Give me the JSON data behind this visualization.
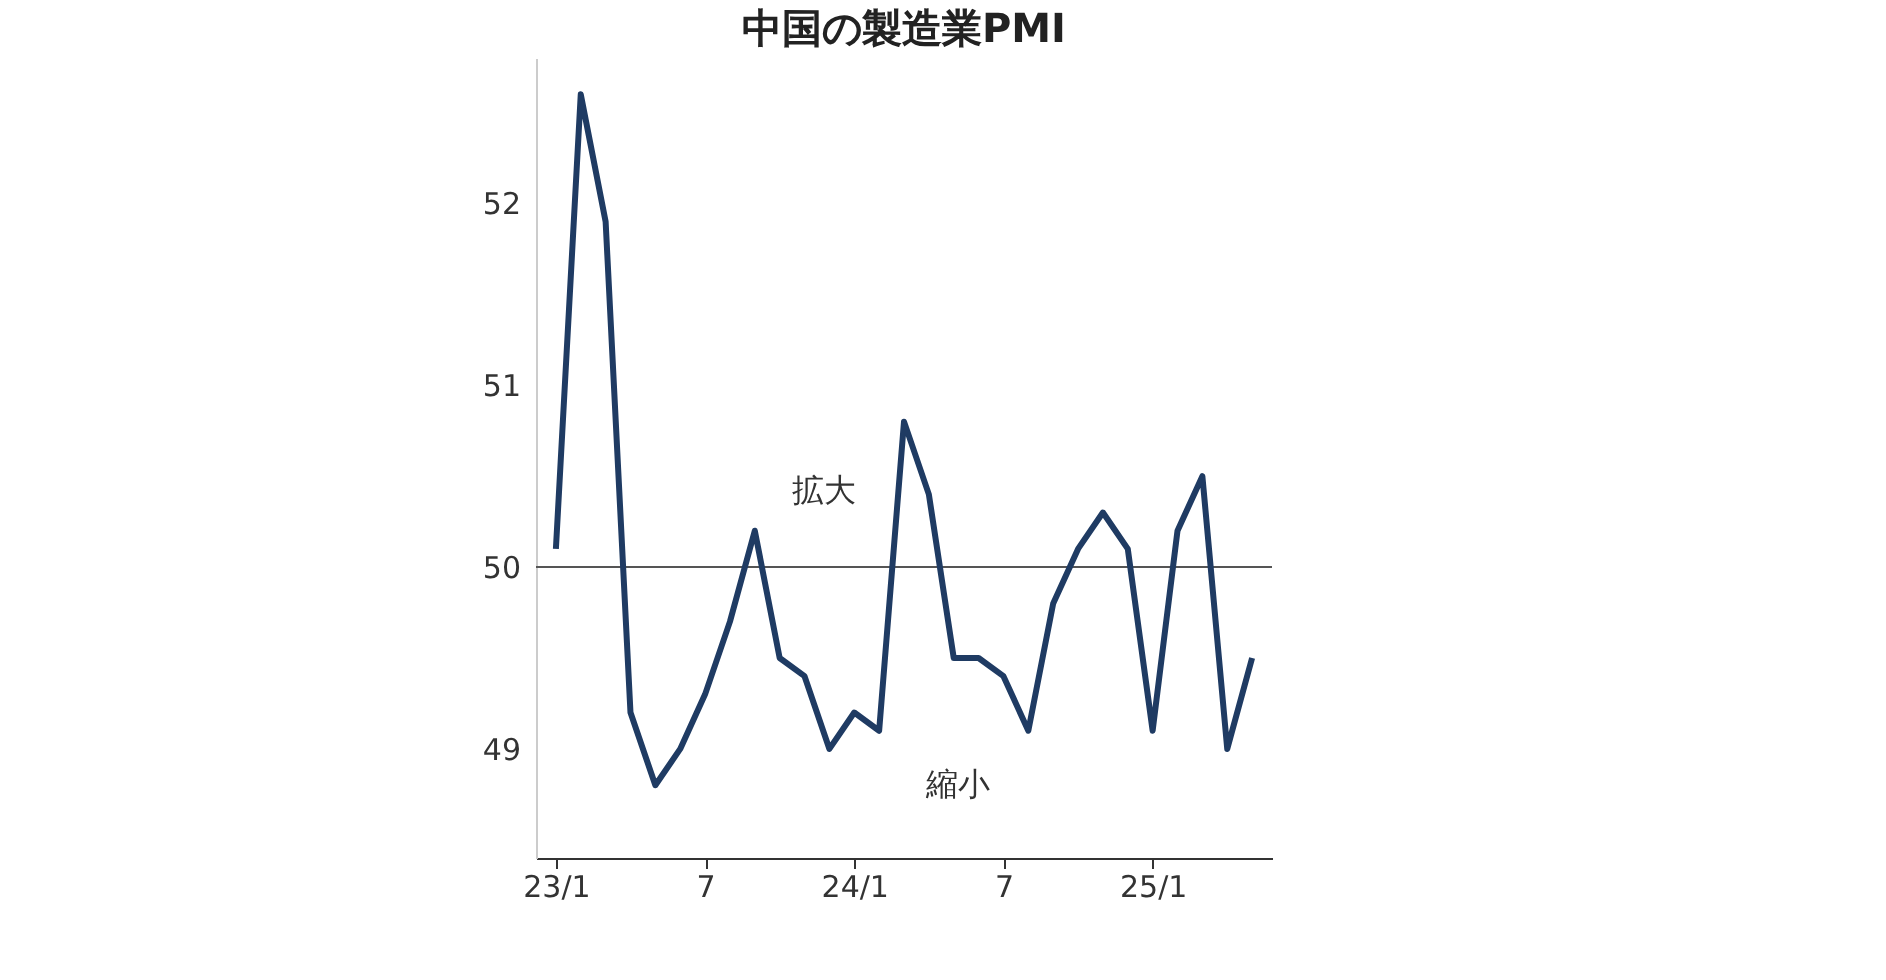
{
  "chart_data": {
    "type": "line",
    "title": "中国の製造業PMI",
    "categories": [
      "23/1",
      null,
      null,
      null,
      null,
      null,
      "7",
      null,
      null,
      null,
      null,
      null,
      "24/1",
      null,
      null,
      null,
      null,
      null,
      "7",
      null,
      null,
      null,
      null,
      null,
      "25/1",
      null,
      null,
      null,
      null
    ],
    "series": [
      {
        "color": "#1f3b63",
        "values": [
          50.1,
          52.6,
          51.9,
          49.2,
          48.8,
          49.0,
          49.3,
          49.7,
          50.2,
          49.5,
          49.4,
          49.0,
          49.2,
          49.1,
          50.8,
          50.4,
          49.5,
          49.5,
          49.4,
          49.1,
          49.8,
          50.1,
          50.3,
          50.1,
          49.1,
          50.2,
          50.5,
          49.0,
          49.5
        ]
      }
    ],
    "ylim": [
      48.4,
      52.8
    ],
    "yticks": [
      49,
      50,
      51,
      52
    ],
    "ref_lines": [
      {
        "axis": "y",
        "value": 50,
        "color": "#555555"
      }
    ],
    "annotations": [
      "拡大",
      "縮小"
    ],
    "grid": false,
    "marker": "none",
    "line_style": "solid"
  }
}
